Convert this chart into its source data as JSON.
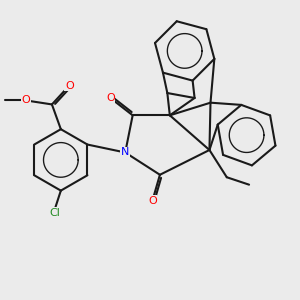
{
  "bg_color": "#ebebeb",
  "bond_color": "#1a1a1a",
  "bond_width": 1.5,
  "atom_colors": {
    "O": "#ff0000",
    "N": "#0000ff",
    "Cl": "#228b22",
    "C": "#1a1a1a"
  },
  "font_size": 8,
  "figsize": [
    3.0,
    3.0
  ],
  "dpi": 100
}
